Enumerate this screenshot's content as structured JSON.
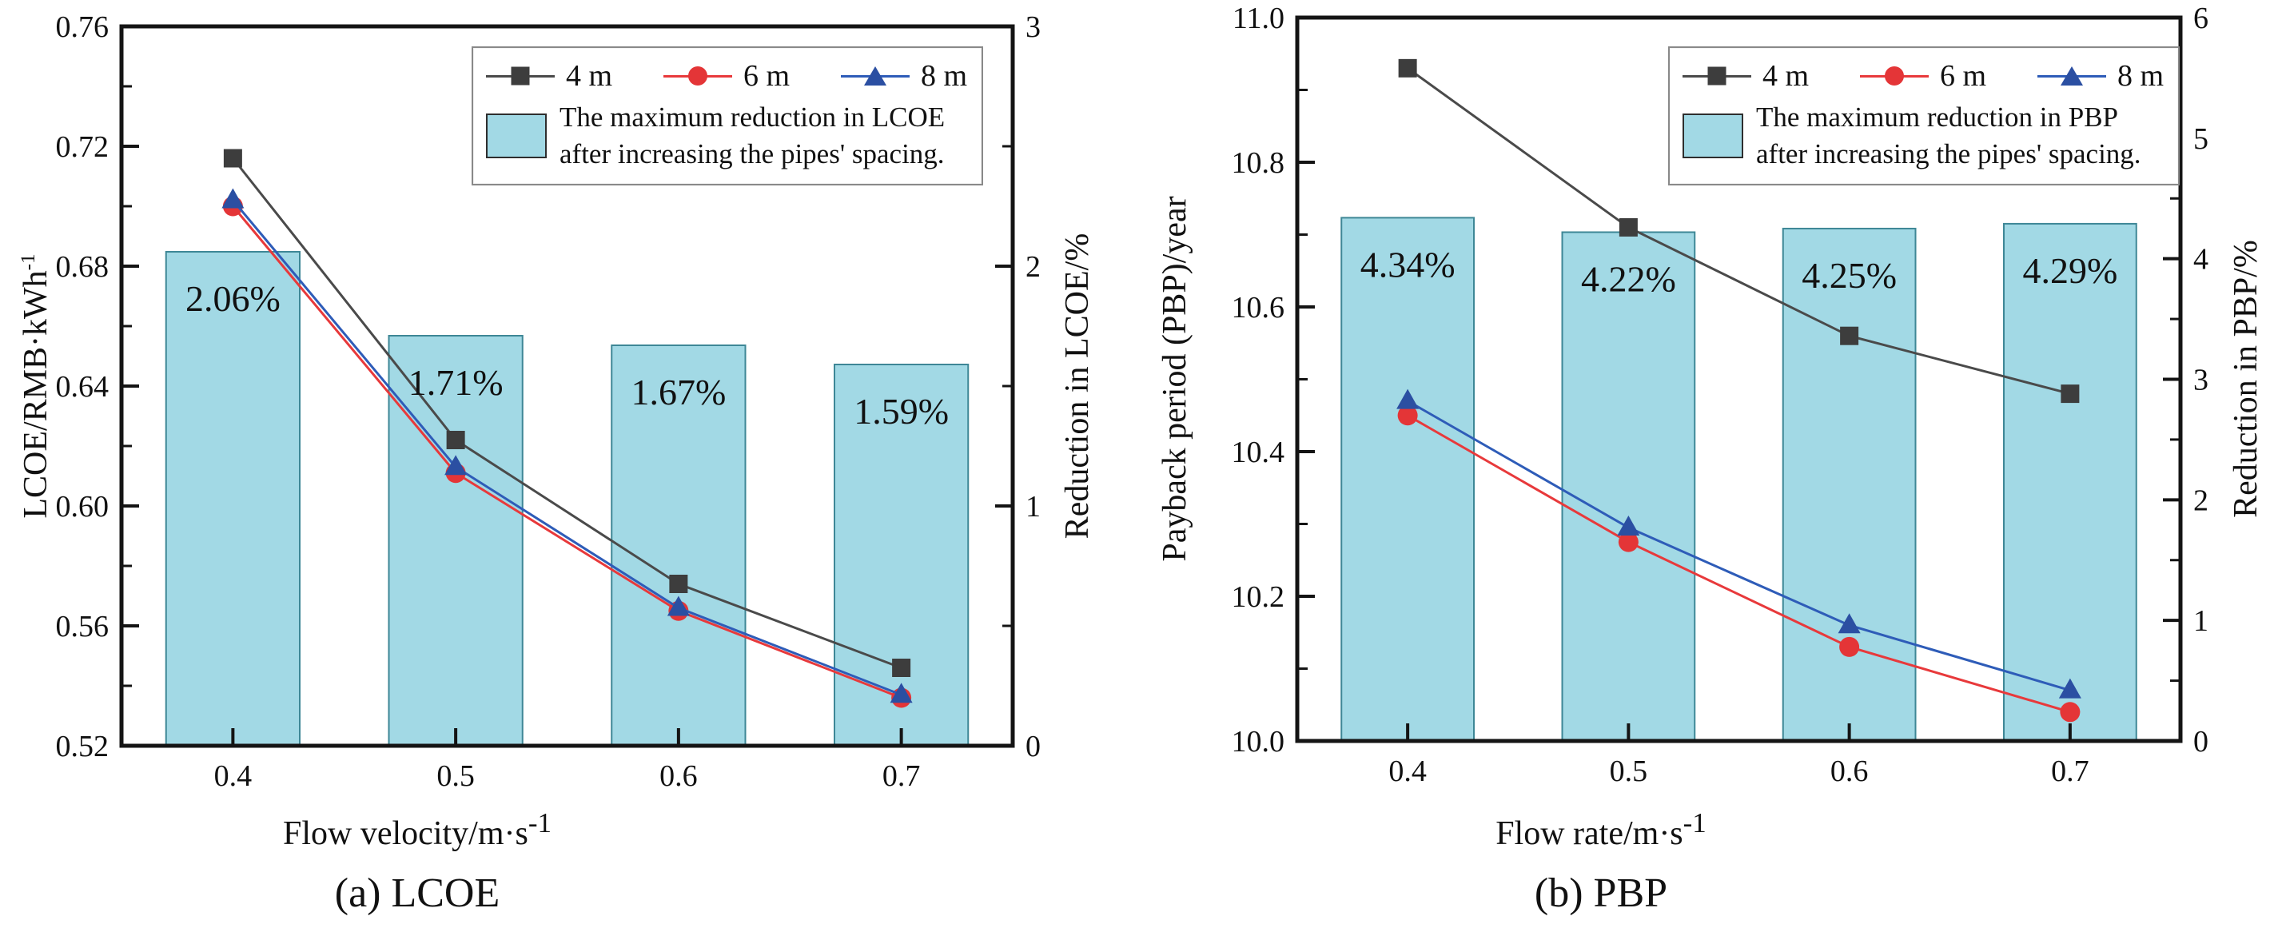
{
  "page": {
    "background": "#ffffff"
  },
  "chart_data": [
    {
      "panel": "a",
      "type": "line+bar",
      "caption": "(a) LCOE",
      "xlabel": "Flow velocity/m·s",
      "xlabel_sup": "-1",
      "ylabel_left": "LCOE/RMB·kWh",
      "ylabel_left_sup": "-1",
      "ylabel_right": "Reduction in LCOE/%",
      "x_categories": [
        0.4,
        0.5,
        0.6,
        0.7
      ],
      "x_tick_labels": [
        "0.4",
        "0.5",
        "0.6",
        "0.7"
      ],
      "y_left_range": [
        0.52,
        0.76
      ],
      "y_left_ticks": [
        0.52,
        0.56,
        0.6,
        0.64,
        0.68,
        0.72,
        0.76
      ],
      "y_left_tick_labels": [
        "0.52",
        "0.56",
        "0.60",
        "0.64",
        "0.68",
        "0.72",
        "0.76"
      ],
      "y_left_minor_step": 0.02,
      "y_right_range": [
        0,
        3
      ],
      "y_right_ticks": [
        0,
        1,
        2,
        3
      ],
      "y_right_tick_labels": [
        "0",
        "1",
        "2",
        "3"
      ],
      "y_right_minor_step": 0.5,
      "grid": false,
      "legend_position": "top-right",
      "series": [
        {
          "name": "4 m",
          "marker": "square",
          "color": "#4a4a4a",
          "marker_color": "#3d3d3d",
          "values": [
            0.716,
            0.622,
            0.574,
            0.546
          ]
        },
        {
          "name": "6 m",
          "marker": "circle",
          "color": "#e8393b",
          "marker_color": "#e43537",
          "values": [
            0.7,
            0.611,
            0.565,
            0.536
          ]
        },
        {
          "name": "8 m",
          "marker": "triangle",
          "color": "#2e5cb8",
          "marker_color": "#2b4fa2",
          "values": [
            0.702,
            0.613,
            0.566,
            0.537
          ]
        }
      ],
      "bars": {
        "axis": "right",
        "values": [
          2.06,
          1.71,
          1.67,
          1.59
        ],
        "labels": [
          "2.06%",
          "1.71%",
          "1.67%",
          "1.59%"
        ],
        "fill": "#a2d9e5",
        "edge": "#3e8796"
      },
      "legend": {
        "box_line1": "The maximum reduction in LCOE",
        "box_line2": "after increasing the pipes' spacing."
      }
    },
    {
      "panel": "b",
      "type": "line+bar",
      "caption": "(b) PBP",
      "xlabel": "Flow rate/m·s",
      "xlabel_sup": "-1",
      "ylabel_left": "Payback period (PBP)/year",
      "ylabel_left_sup": "",
      "ylabel_right": "Reduction in PBP/%",
      "x_categories": [
        0.4,
        0.5,
        0.6,
        0.7
      ],
      "x_tick_labels": [
        "0.4",
        "0.5",
        "0.6",
        "0.7"
      ],
      "y_left_range": [
        10.0,
        11.0
      ],
      "y_left_ticks": [
        10.0,
        10.2,
        10.4,
        10.6,
        10.8,
        11.0
      ],
      "y_left_tick_labels": [
        "10.0",
        "10.2",
        "10.4",
        "10.6",
        "10.8",
        "11.0"
      ],
      "y_left_minor_step": 0.1,
      "y_right_range": [
        0,
        6
      ],
      "y_right_ticks": [
        0,
        1,
        2,
        3,
        4,
        5,
        6
      ],
      "y_right_tick_labels": [
        "0",
        "1",
        "2",
        "3",
        "4",
        "5",
        "6"
      ],
      "y_right_minor_step": 0.5,
      "grid": false,
      "legend_position": "top-right",
      "series": [
        {
          "name": "4 m",
          "marker": "square",
          "color": "#4a4a4a",
          "marker_color": "#3d3d3d",
          "values": [
            10.93,
            10.71,
            10.56,
            10.48
          ]
        },
        {
          "name": "6 m",
          "marker": "circle",
          "color": "#e8393b",
          "marker_color": "#e43537",
          "values": [
            10.45,
            10.275,
            10.13,
            10.04
          ]
        },
        {
          "name": "8 m",
          "marker": "triangle",
          "color": "#2e5cb8",
          "marker_color": "#2b4fa2",
          "values": [
            10.47,
            10.295,
            10.16,
            10.07
          ]
        }
      ],
      "bars": {
        "axis": "right",
        "values": [
          4.34,
          4.22,
          4.25,
          4.29
        ],
        "labels": [
          "4.34%",
          "4.22%",
          "4.25%",
          "4.29%"
        ],
        "fill": "#a2d9e5",
        "edge": "#3e8796"
      },
      "legend": {
        "box_line1": "The maximum reduction in PBP",
        "box_line2": "after increasing the pipes' spacing."
      }
    }
  ]
}
